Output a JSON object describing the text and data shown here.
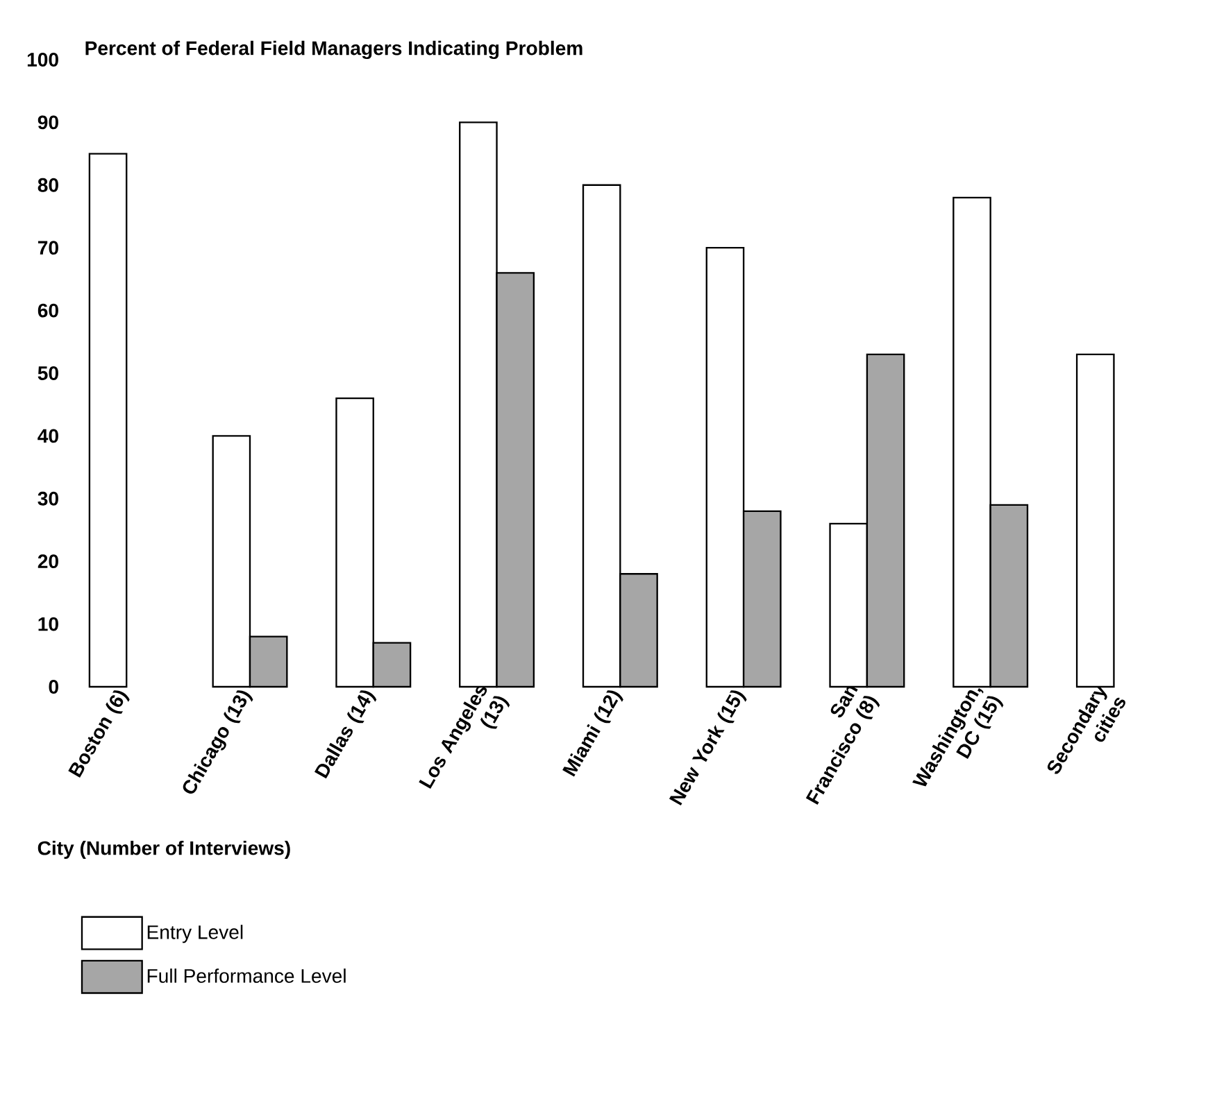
{
  "chart_data": {
    "type": "bar",
    "title": "Percent of Federal Field Managers Indicating Problem",
    "xlabel": "City (Number of Interviews)",
    "categories": [
      "Boston (6)",
      "Chicago (13)",
      "Dallas (14)",
      "Los Angeles (13)",
      "Miami (12)",
      "New York (15)",
      "San Francisco (8)",
      "Washington, DC (15)",
      "Secondary cities"
    ],
    "series": [
      {
        "name": "Entry Level",
        "color": "#ffffff",
        "values": [
          85,
          40,
          46,
          90,
          80,
          70,
          26,
          78,
          53
        ]
      },
      {
        "name": "Full Performance Level",
        "color": "#a6a6a6",
        "values": [
          null,
          8,
          7,
          66,
          18,
          28,
          53,
          29,
          null
        ]
      }
    ],
    "ylim": [
      0,
      100
    ],
    "yticks": [
      0,
      10,
      20,
      30,
      40,
      50,
      60,
      70,
      80,
      90,
      100
    ],
    "legend": "bottom left"
  }
}
